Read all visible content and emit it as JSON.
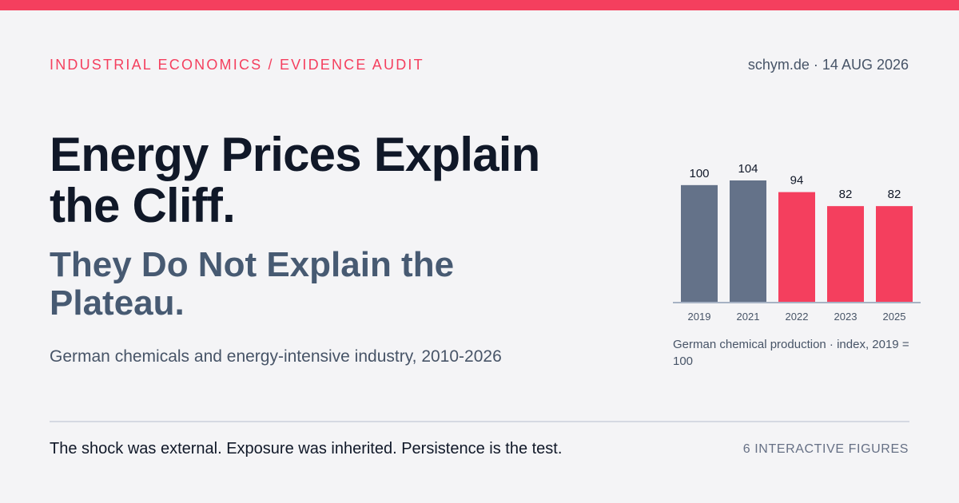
{
  "header": {
    "kicker": "INDUSTRIAL ECONOMICS / EVIDENCE AUDIT",
    "site_meta": "schym.de · 14 AUG 2026"
  },
  "headline": {
    "title": "Energy Prices Explain the Cliff.",
    "subtitle": "They Do Not Explain the Plateau.",
    "scope": "German chemicals and energy-intensive industry, 2010-2026"
  },
  "chart_data": {
    "type": "bar",
    "categories": [
      "2019",
      "2021",
      "2022",
      "2023",
      "2025"
    ],
    "values": [
      100,
      104,
      94,
      82,
      82
    ],
    "data_labels": [
      "100",
      "104",
      "94",
      "82",
      "82"
    ],
    "caption": "German chemical production · index, 2019 = 100",
    "ylim": [
      0,
      104
    ],
    "grid": false,
    "colors": {
      "baseline": "#647289",
      "decline": "#f43f5e",
      "axis": "#8c9bb3",
      "label": "#101828",
      "tick": "#475467"
    },
    "bar_colors": [
      "#647289",
      "#647289",
      "#f43f5e",
      "#f43f5e",
      "#f43f5e"
    ]
  },
  "footer": {
    "tagline": "The shock was external. Exposure was inherited. Persistence is the test.",
    "figures_count": "6 INTERACTIVE FIGURES"
  },
  "colors": {
    "accent": "#f43f5e",
    "background": "#f4f4f6",
    "text": "#101828",
    "muted": "#475467"
  }
}
